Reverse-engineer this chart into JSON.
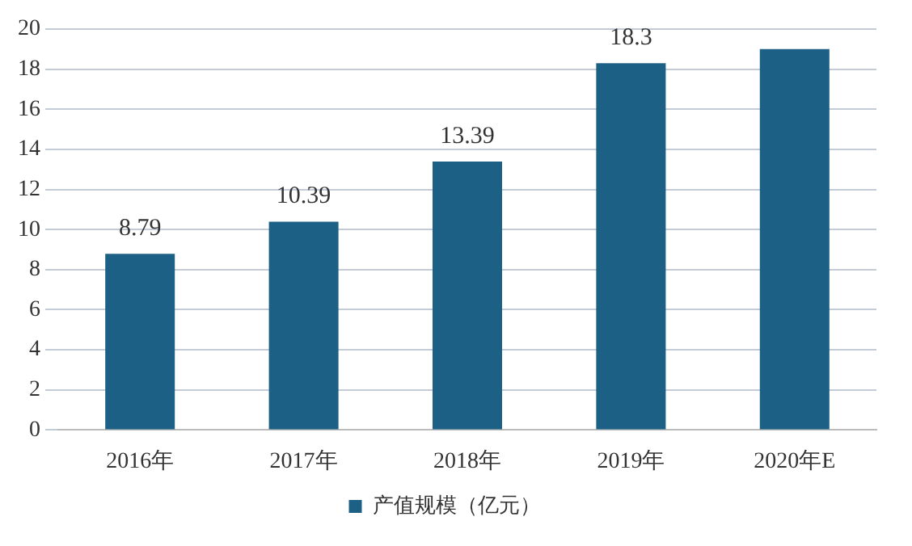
{
  "chart_data": {
    "type": "bar",
    "categories": [
      "2016年",
      "2017年",
      "2018年",
      "2019年",
      "2020年E"
    ],
    "series": [
      {
        "name": "产值规模（亿元）",
        "color": "#1d6085",
        "values": [
          8.79,
          10.39,
          13.39,
          18.3,
          19
        ],
        "value_labels": [
          "8.79",
          "10.39",
          "13.39",
          "18.3",
          null
        ]
      }
    ],
    "ylim": [
      0,
      20
    ],
    "yticks": [
      0,
      2,
      4,
      6,
      8,
      10,
      12,
      14,
      16,
      18,
      20
    ],
    "grid": "y",
    "legend": "bottom"
  }
}
